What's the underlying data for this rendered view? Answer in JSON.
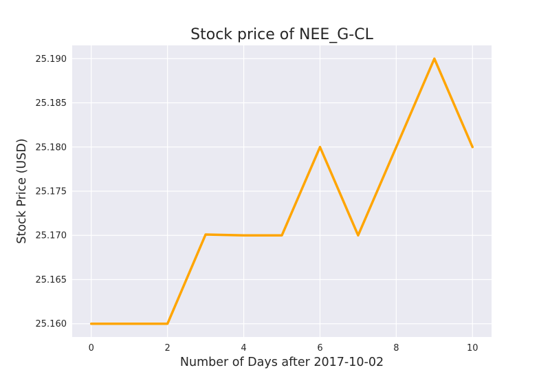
{
  "chart_data": {
    "type": "line",
    "title": "Stock price of NEE_G-CL",
    "xlabel": "Number of Days after 2017-10-02",
    "ylabel": "Stock Price (USD)",
    "x": [
      0,
      1,
      2,
      3,
      4,
      5,
      6,
      7,
      8,
      9,
      10
    ],
    "series": [
      {
        "values": [
          25.16,
          25.16,
          25.16,
          25.1701,
          25.17,
          25.17,
          25.18,
          25.17,
          25.18,
          25.19,
          25.18
        ],
        "color": "#ffa500"
      }
    ],
    "xlim": [
      -0.5,
      10.5
    ],
    "ylim": [
      25.1585,
      25.1915
    ],
    "xticks": [
      0,
      2,
      4,
      6,
      8,
      10
    ],
    "xtick_labels": [
      "0",
      "2",
      "4",
      "6",
      "8",
      "10"
    ],
    "yticks": [
      25.16,
      25.165,
      25.17,
      25.175,
      25.18,
      25.185,
      25.19
    ],
    "ytick_labels": [
      "25.160",
      "25.165",
      "25.170",
      "25.175",
      "25.180",
      "25.185",
      "25.190"
    ],
    "grid": true,
    "style": "seaborn-darkgrid",
    "plot_background": "#eaeaf2",
    "grid_color": "#ffffff"
  }
}
